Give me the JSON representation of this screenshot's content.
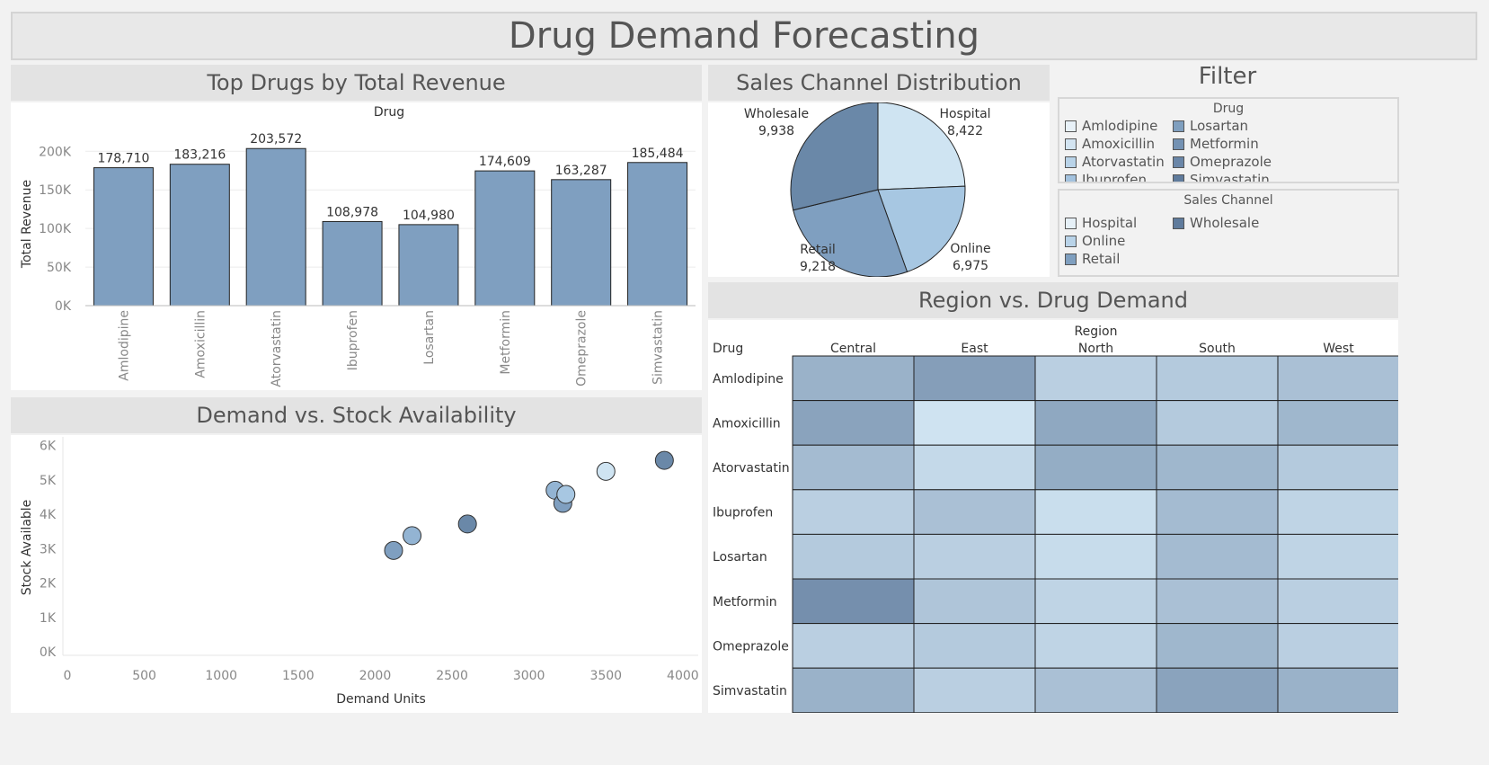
{
  "dashboard": {
    "title": "Drug Demand Forecasting"
  },
  "sections": {
    "bar": "Top Drugs by Total Revenue",
    "pie": "Sales Channel Distribution",
    "filter": "Filter",
    "scatter": "Demand vs. Stock Availability",
    "heatmap": "Region vs. Drug Demand"
  },
  "legends": {
    "drug_title": "Drug",
    "drug_items": [
      {
        "label": "Amlodipine",
        "color": "#e8f1f8"
      },
      {
        "label": "Losartan",
        "color": "#7f9fbf"
      },
      {
        "label": "Amoxicillin",
        "color": "#d3e4f1"
      },
      {
        "label": "Metformin",
        "color": "#7492b3"
      },
      {
        "label": "Atorvastatin",
        "color": "#b9d3e8"
      },
      {
        "label": "Omeprazole",
        "color": "#6a86a8"
      },
      {
        "label": "Ibuprofen",
        "color": "#a3c2de"
      },
      {
        "label": "Simvastatin",
        "color": "#5f7b9c"
      }
    ],
    "channel_title": "Sales Channel",
    "channel_items": [
      {
        "label": "Hospital",
        "color": "#e6f0f7"
      },
      {
        "label": "Wholesale",
        "color": "#5f7b9c"
      },
      {
        "label": "Online",
        "color": "#b9d3e8"
      },
      {
        "label": "",
        "color": ""
      },
      {
        "label": "Retail",
        "color": "#7f9fbf"
      },
      {
        "label": "",
        "color": ""
      }
    ]
  },
  "chart_data": [
    {
      "type": "bar",
      "title": "Top Drugs by Total Revenue",
      "xlabel": "Drug",
      "ylabel": "Total Revenue",
      "categories": [
        "Amlodipine",
        "Amoxicillin",
        "Atorvastatin",
        "Ibuprofen",
        "Losartan",
        "Metformin",
        "Omeprazole",
        "Simvastatin"
      ],
      "values": [
        178710,
        183216,
        203572,
        108978,
        104980,
        174609,
        163287,
        185484
      ],
      "value_labels": [
        "178,710",
        "183,216",
        "203,572",
        "108,978",
        "104,980",
        "174,609",
        "163,287",
        "185,484"
      ],
      "yticks": [
        0,
        50000,
        100000,
        150000,
        200000
      ],
      "ytick_labels": [
        "0K",
        "50K",
        "100K",
        "150K",
        "200K"
      ],
      "ylim": [
        0,
        212000
      ],
      "color": "#7f9fc0"
    },
    {
      "type": "pie",
      "title": "Sales Channel Distribution",
      "labels": [
        "Hospital",
        "Online",
        "Retail",
        "Wholesale"
      ],
      "values": [
        8422,
        6975,
        9218,
        9938
      ],
      "value_labels": [
        "8,422",
        "6,975",
        "9,218",
        "9,938"
      ],
      "colors": [
        "#cfe4f2",
        "#a7c7e2",
        "#7f9fc0",
        "#6a88a8"
      ]
    },
    {
      "type": "scatter",
      "title": "Demand vs. Stock Availability",
      "xlabel": "Demand Units",
      "ylabel": "Stock Available",
      "xlim": [
        0,
        4100
      ],
      "ylim": [
        -100,
        6200
      ],
      "xticks": [
        0,
        500,
        1000,
        1500,
        2000,
        2500,
        3000,
        3500,
        4000
      ],
      "yticks": [
        0,
        1000,
        2000,
        3000,
        4000,
        5000,
        6000
      ],
      "ytick_labels": [
        "0K",
        "1K",
        "2K",
        "3K",
        "4K",
        "5K",
        "6K"
      ],
      "points": [
        {
          "x": 2120,
          "y": 2950,
          "color": "#7f9fc0"
        },
        {
          "x": 2240,
          "y": 3380,
          "color": "#93b4d3"
        },
        {
          "x": 2600,
          "y": 3720,
          "color": "#6a88a8"
        },
        {
          "x": 3170,
          "y": 4700,
          "color": "#93b4d3"
        },
        {
          "x": 3220,
          "y": 4320,
          "color": "#7f9fc0"
        },
        {
          "x": 3240,
          "y": 4580,
          "color": "#a7c7e2"
        },
        {
          "x": 3500,
          "y": 5250,
          "color": "#cfe4f2"
        },
        {
          "x": 3880,
          "y": 5570,
          "color": "#6a88a8"
        }
      ]
    },
    {
      "type": "heatmap",
      "title": "Region vs. Drug Demand",
      "column_header": "Region",
      "row_header": "Drug",
      "columns": [
        "Central",
        "East",
        "North",
        "South",
        "West"
      ],
      "rows": [
        "Amlodipine",
        "Amoxicillin",
        "Atorvastatin",
        "Ibuprofen",
        "Losartan",
        "Metformin",
        "Omeprazole",
        "Simvastatin"
      ],
      "values": [
        [
          0.55,
          0.75,
          0.25,
          0.3,
          0.4
        ],
        [
          0.7,
          0.05,
          0.65,
          0.3,
          0.5
        ],
        [
          0.45,
          0.15,
          0.6,
          0.5,
          0.3
        ],
        [
          0.25,
          0.4,
          0.1,
          0.45,
          0.2
        ],
        [
          0.3,
          0.25,
          0.12,
          0.45,
          0.2
        ],
        [
          0.9,
          0.35,
          0.2,
          0.4,
          0.25
        ],
        [
          0.25,
          0.3,
          0.2,
          0.5,
          0.25
        ],
        [
          0.55,
          0.25,
          0.4,
          0.7,
          0.55
        ]
      ],
      "color_low": "#d4e8f5",
      "color_high": "#6a85a5"
    }
  ]
}
